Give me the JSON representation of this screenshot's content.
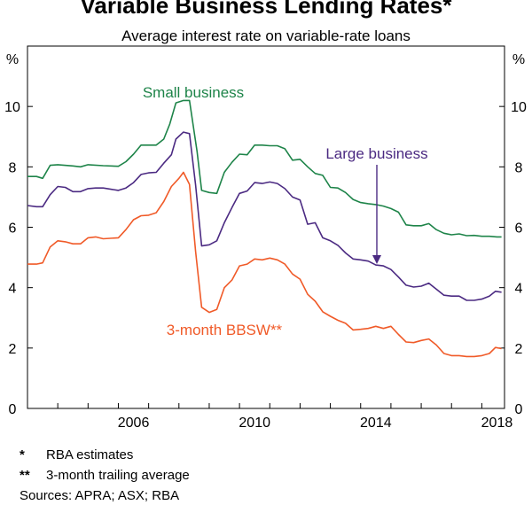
{
  "chart_data": {
    "type": "line",
    "title": "Variable Business Lending Rates*",
    "subtitle": "Average interest rate on variable-rate loans",
    "y_unit_left": "%",
    "y_unit_right": "%",
    "ylim": [
      0,
      12
    ],
    "yticks": [
      0,
      2,
      4,
      6,
      8,
      10
    ],
    "xlim": [
      2003.0,
      2018.75
    ],
    "xticks": [
      2006,
      2010,
      2014,
      2018
    ],
    "grid": false,
    "series": [
      {
        "name": "Small business",
        "color": "#1e8449",
        "points": [
          [
            2003.0,
            7.68
          ],
          [
            2003.3,
            7.68
          ],
          [
            2003.5,
            7.62
          ],
          [
            2003.75,
            8.05
          ],
          [
            2004.0,
            8.07
          ],
          [
            2004.5,
            8.03
          ],
          [
            2004.75,
            8.0
          ],
          [
            2005.0,
            8.07
          ],
          [
            2005.5,
            8.04
          ],
          [
            2006.0,
            8.02
          ],
          [
            2006.25,
            8.17
          ],
          [
            2006.5,
            8.42
          ],
          [
            2006.75,
            8.72
          ],
          [
            2007.0,
            8.72
          ],
          [
            2007.25,
            8.72
          ],
          [
            2007.5,
            8.92
          ],
          [
            2007.7,
            9.42
          ],
          [
            2007.9,
            10.12
          ],
          [
            2008.15,
            10.2
          ],
          [
            2008.35,
            10.2
          ],
          [
            2008.6,
            8.5
          ],
          [
            2008.75,
            7.22
          ],
          [
            2009.0,
            7.15
          ],
          [
            2009.25,
            7.12
          ],
          [
            2009.5,
            7.82
          ],
          [
            2009.75,
            8.15
          ],
          [
            2010.0,
            8.42
          ],
          [
            2010.25,
            8.4
          ],
          [
            2010.5,
            8.72
          ],
          [
            2010.75,
            8.72
          ],
          [
            2011.0,
            8.7
          ],
          [
            2011.25,
            8.7
          ],
          [
            2011.5,
            8.6
          ],
          [
            2011.75,
            8.22
          ],
          [
            2012.0,
            8.25
          ],
          [
            2012.25,
            8.0
          ],
          [
            2012.5,
            7.78
          ],
          [
            2012.75,
            7.72
          ],
          [
            2013.0,
            7.32
          ],
          [
            2013.25,
            7.3
          ],
          [
            2013.5,
            7.15
          ],
          [
            2013.75,
            6.92
          ],
          [
            2014.0,
            6.82
          ],
          [
            2014.25,
            6.78
          ],
          [
            2014.5,
            6.75
          ],
          [
            2014.75,
            6.7
          ],
          [
            2015.0,
            6.62
          ],
          [
            2015.25,
            6.5
          ],
          [
            2015.5,
            6.08
          ],
          [
            2015.75,
            6.05
          ],
          [
            2016.0,
            6.05
          ],
          [
            2016.25,
            6.12
          ],
          [
            2016.5,
            5.92
          ],
          [
            2016.75,
            5.8
          ],
          [
            2017.0,
            5.75
          ],
          [
            2017.25,
            5.78
          ],
          [
            2017.5,
            5.72
          ],
          [
            2017.75,
            5.73
          ],
          [
            2018.0,
            5.7
          ],
          [
            2018.25,
            5.7
          ],
          [
            2018.5,
            5.68
          ],
          [
            2018.65,
            5.68
          ]
        ]
      },
      {
        "name": "Large business",
        "color": "#4b2a82",
        "points": [
          [
            2003.0,
            6.72
          ],
          [
            2003.3,
            6.68
          ],
          [
            2003.5,
            6.68
          ],
          [
            2003.75,
            7.08
          ],
          [
            2004.0,
            7.35
          ],
          [
            2004.25,
            7.32
          ],
          [
            2004.5,
            7.18
          ],
          [
            2004.75,
            7.18
          ],
          [
            2005.0,
            7.28
          ],
          [
            2005.25,
            7.3
          ],
          [
            2005.5,
            7.3
          ],
          [
            2006.0,
            7.22
          ],
          [
            2006.25,
            7.3
          ],
          [
            2006.5,
            7.48
          ],
          [
            2006.75,
            7.75
          ],
          [
            2007.0,
            7.8
          ],
          [
            2007.25,
            7.82
          ],
          [
            2007.5,
            8.12
          ],
          [
            2007.75,
            8.4
          ],
          [
            2007.9,
            8.92
          ],
          [
            2008.15,
            9.15
          ],
          [
            2008.35,
            9.1
          ],
          [
            2008.55,
            7.4
          ],
          [
            2008.75,
            5.38
          ],
          [
            2009.0,
            5.42
          ],
          [
            2009.25,
            5.55
          ],
          [
            2009.5,
            6.15
          ],
          [
            2009.75,
            6.65
          ],
          [
            2010.0,
            7.12
          ],
          [
            2010.25,
            7.2
          ],
          [
            2010.5,
            7.48
          ],
          [
            2010.75,
            7.45
          ],
          [
            2011.0,
            7.5
          ],
          [
            2011.25,
            7.45
          ],
          [
            2011.5,
            7.28
          ],
          [
            2011.75,
            7.0
          ],
          [
            2012.0,
            6.9
          ],
          [
            2012.25,
            6.1
          ],
          [
            2012.5,
            6.15
          ],
          [
            2012.75,
            5.65
          ],
          [
            2013.0,
            5.55
          ],
          [
            2013.25,
            5.4
          ],
          [
            2013.5,
            5.15
          ],
          [
            2013.75,
            4.95
          ],
          [
            2014.0,
            4.92
          ],
          [
            2014.25,
            4.88
          ],
          [
            2014.5,
            4.75
          ],
          [
            2014.75,
            4.72
          ],
          [
            2015.0,
            4.6
          ],
          [
            2015.25,
            4.35
          ],
          [
            2015.5,
            4.08
          ],
          [
            2015.75,
            4.02
          ],
          [
            2016.0,
            4.05
          ],
          [
            2016.25,
            4.15
          ],
          [
            2016.5,
            3.95
          ],
          [
            2016.75,
            3.75
          ],
          [
            2017.0,
            3.72
          ],
          [
            2017.25,
            3.72
          ],
          [
            2017.5,
            3.58
          ],
          [
            2017.75,
            3.58
          ],
          [
            2018.0,
            3.62
          ],
          [
            2018.25,
            3.72
          ],
          [
            2018.45,
            3.88
          ],
          [
            2018.65,
            3.85
          ]
        ]
      },
      {
        "name": "3-month BBSW**",
        "color": "#f05a28",
        "points": [
          [
            2003.0,
            4.78
          ],
          [
            2003.3,
            4.78
          ],
          [
            2003.5,
            4.82
          ],
          [
            2003.75,
            5.35
          ],
          [
            2004.0,
            5.55
          ],
          [
            2004.25,
            5.52
          ],
          [
            2004.5,
            5.45
          ],
          [
            2004.75,
            5.45
          ],
          [
            2005.0,
            5.65
          ],
          [
            2005.25,
            5.68
          ],
          [
            2005.5,
            5.62
          ],
          [
            2006.0,
            5.65
          ],
          [
            2006.25,
            5.92
          ],
          [
            2006.5,
            6.25
          ],
          [
            2006.75,
            6.38
          ],
          [
            2007.0,
            6.4
          ],
          [
            2007.25,
            6.48
          ],
          [
            2007.5,
            6.85
          ],
          [
            2007.75,
            7.35
          ],
          [
            2008.0,
            7.62
          ],
          [
            2008.15,
            7.82
          ],
          [
            2008.35,
            7.42
          ],
          [
            2008.55,
            5.2
          ],
          [
            2008.75,
            3.35
          ],
          [
            2009.0,
            3.18
          ],
          [
            2009.25,
            3.28
          ],
          [
            2009.5,
            4.0
          ],
          [
            2009.75,
            4.25
          ],
          [
            2010.0,
            4.72
          ],
          [
            2010.25,
            4.78
          ],
          [
            2010.5,
            4.95
          ],
          [
            2010.75,
            4.92
          ],
          [
            2011.0,
            4.98
          ],
          [
            2011.25,
            4.92
          ],
          [
            2011.5,
            4.78
          ],
          [
            2011.75,
            4.45
          ],
          [
            2012.0,
            4.28
          ],
          [
            2012.25,
            3.78
          ],
          [
            2012.5,
            3.55
          ],
          [
            2012.75,
            3.2
          ],
          [
            2013.0,
            3.05
          ],
          [
            2013.25,
            2.92
          ],
          [
            2013.5,
            2.82
          ],
          [
            2013.75,
            2.6
          ],
          [
            2014.0,
            2.62
          ],
          [
            2014.25,
            2.65
          ],
          [
            2014.5,
            2.72
          ],
          [
            2014.75,
            2.65
          ],
          [
            2015.0,
            2.72
          ],
          [
            2015.25,
            2.45
          ],
          [
            2015.5,
            2.2
          ],
          [
            2015.75,
            2.18
          ],
          [
            2016.0,
            2.25
          ],
          [
            2016.25,
            2.3
          ],
          [
            2016.5,
            2.1
          ],
          [
            2016.75,
            1.82
          ],
          [
            2017.0,
            1.75
          ],
          [
            2017.25,
            1.75
          ],
          [
            2017.5,
            1.72
          ],
          [
            2017.75,
            1.72
          ],
          [
            2018.0,
            1.75
          ],
          [
            2018.25,
            1.82
          ],
          [
            2018.45,
            2.02
          ],
          [
            2018.65,
            1.98
          ]
        ]
      }
    ],
    "annotations": [
      {
        "text": "Small business",
        "color": "#1e8449"
      },
      {
        "text": "Large business",
        "color": "#4b2a82"
      },
      {
        "text": "3-month BBSW**",
        "color": "#f05a28"
      }
    ]
  },
  "footnotes": [
    {
      "mark": "*",
      "text": "RBA estimates"
    },
    {
      "mark": "**",
      "text": "3-month trailing average"
    }
  ],
  "sources": "Sources: APRA; ASX; RBA"
}
